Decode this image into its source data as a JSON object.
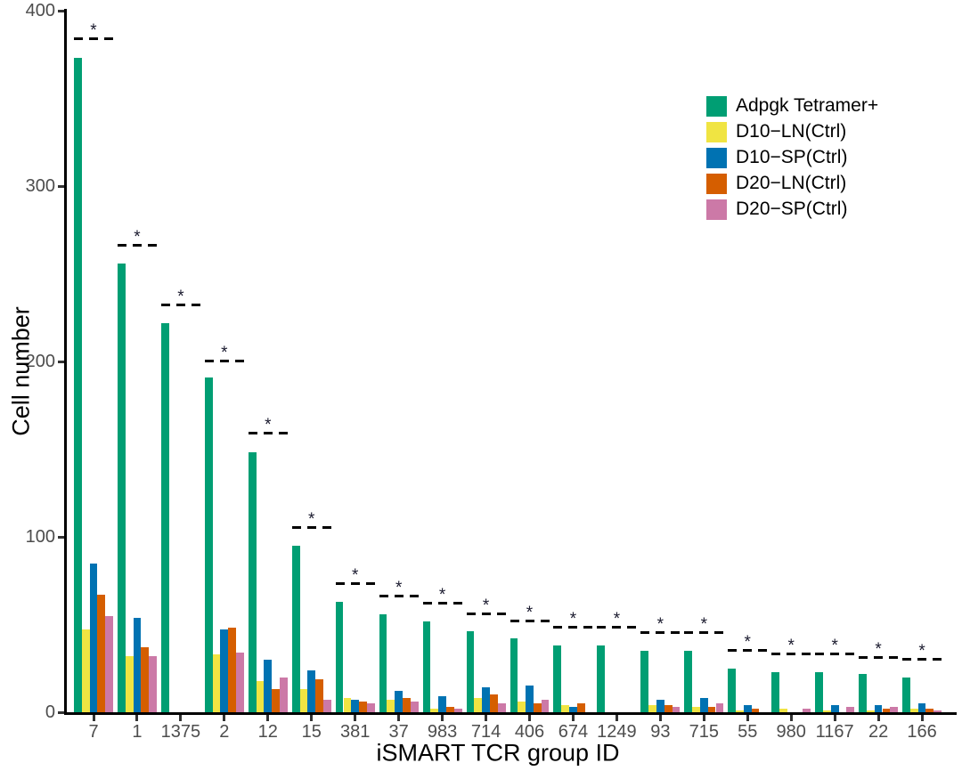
{
  "figure": {
    "y_axis_title": "Cell number",
    "x_axis_title": "iSMART TCR group ID"
  },
  "legend": {
    "position": "right-top",
    "items": [
      {
        "label": "Adpgk Tetramer+",
        "color": "#009E73"
      },
      {
        "label": "D10−LN(Ctrl)",
        "color": "#F0E442"
      },
      {
        "label": "D10−SP(Ctrl)",
        "color": "#0072B2"
      },
      {
        "label": "D20−LN(Ctrl)",
        "color": "#D55E00"
      },
      {
        "label": "D20−SP(Ctrl)",
        "color": "#CC79A7"
      }
    ]
  },
  "chart_data": {
    "type": "bar",
    "title": "",
    "xlabel": "iSMART TCR group ID",
    "ylabel": "Cell number",
    "ylim": [
      0,
      400
    ],
    "grid": false,
    "legend_position": "right-top",
    "y_ticks": [
      0,
      100,
      200,
      300,
      400
    ],
    "y_tick_labels": [
      "0",
      "100",
      "200",
      "300",
      "400"
    ],
    "categories": [
      "7",
      "1",
      "1375",
      "2",
      "12",
      "15",
      "381",
      "37",
      "983",
      "714",
      "406",
      "674",
      "1249",
      "93",
      "715",
      "55",
      "980",
      "1167",
      "22",
      "166"
    ],
    "series": [
      {
        "name": "Adpgk Tetramer+",
        "color": "#009E73",
        "values": [
          373,
          256,
          222,
          191,
          148,
          95,
          63,
          56,
          52,
          46,
          42,
          38,
          38,
          35,
          35,
          25,
          23,
          23,
          22,
          20
        ]
      },
      {
        "name": "D10−LN(Ctrl)",
        "color": "#F0E442",
        "values": [
          47,
          32,
          0,
          33,
          18,
          13,
          8,
          7,
          2,
          8,
          6,
          4,
          0,
          4,
          3,
          1,
          2,
          1,
          1,
          2
        ]
      },
      {
        "name": "D10−SP(Ctrl)",
        "color": "#0072B2",
        "values": [
          85,
          54,
          0,
          47,
          30,
          24,
          7,
          12,
          9,
          14,
          15,
          3,
          0,
          7,
          8,
          4,
          0,
          4,
          4,
          5
        ]
      },
      {
        "name": "D20−LN(Ctrl)",
        "color": "#D55E00",
        "values": [
          67,
          37,
          0,
          48,
          13,
          19,
          6,
          8,
          3,
          10,
          5,
          5,
          0,
          4,
          3,
          2,
          0,
          0,
          2,
          2
        ]
      },
      {
        "name": "D20−SP(Ctrl)",
        "color": "#CC79A7",
        "values": [
          55,
          32,
          0,
          34,
          20,
          7,
          5,
          6,
          2,
          5,
          7,
          0,
          0,
          3,
          5,
          0,
          2,
          3,
          3,
          1
        ]
      }
    ],
    "significance_markers": {
      "symbol": "*",
      "line_style": "dashed",
      "applies_to_every_category": true,
      "line_values": [
        385,
        267,
        233,
        201,
        160,
        106,
        74,
        67,
        63,
        57,
        53,
        49,
        49,
        46,
        46,
        36,
        34,
        34,
        32,
        31
      ]
    }
  }
}
